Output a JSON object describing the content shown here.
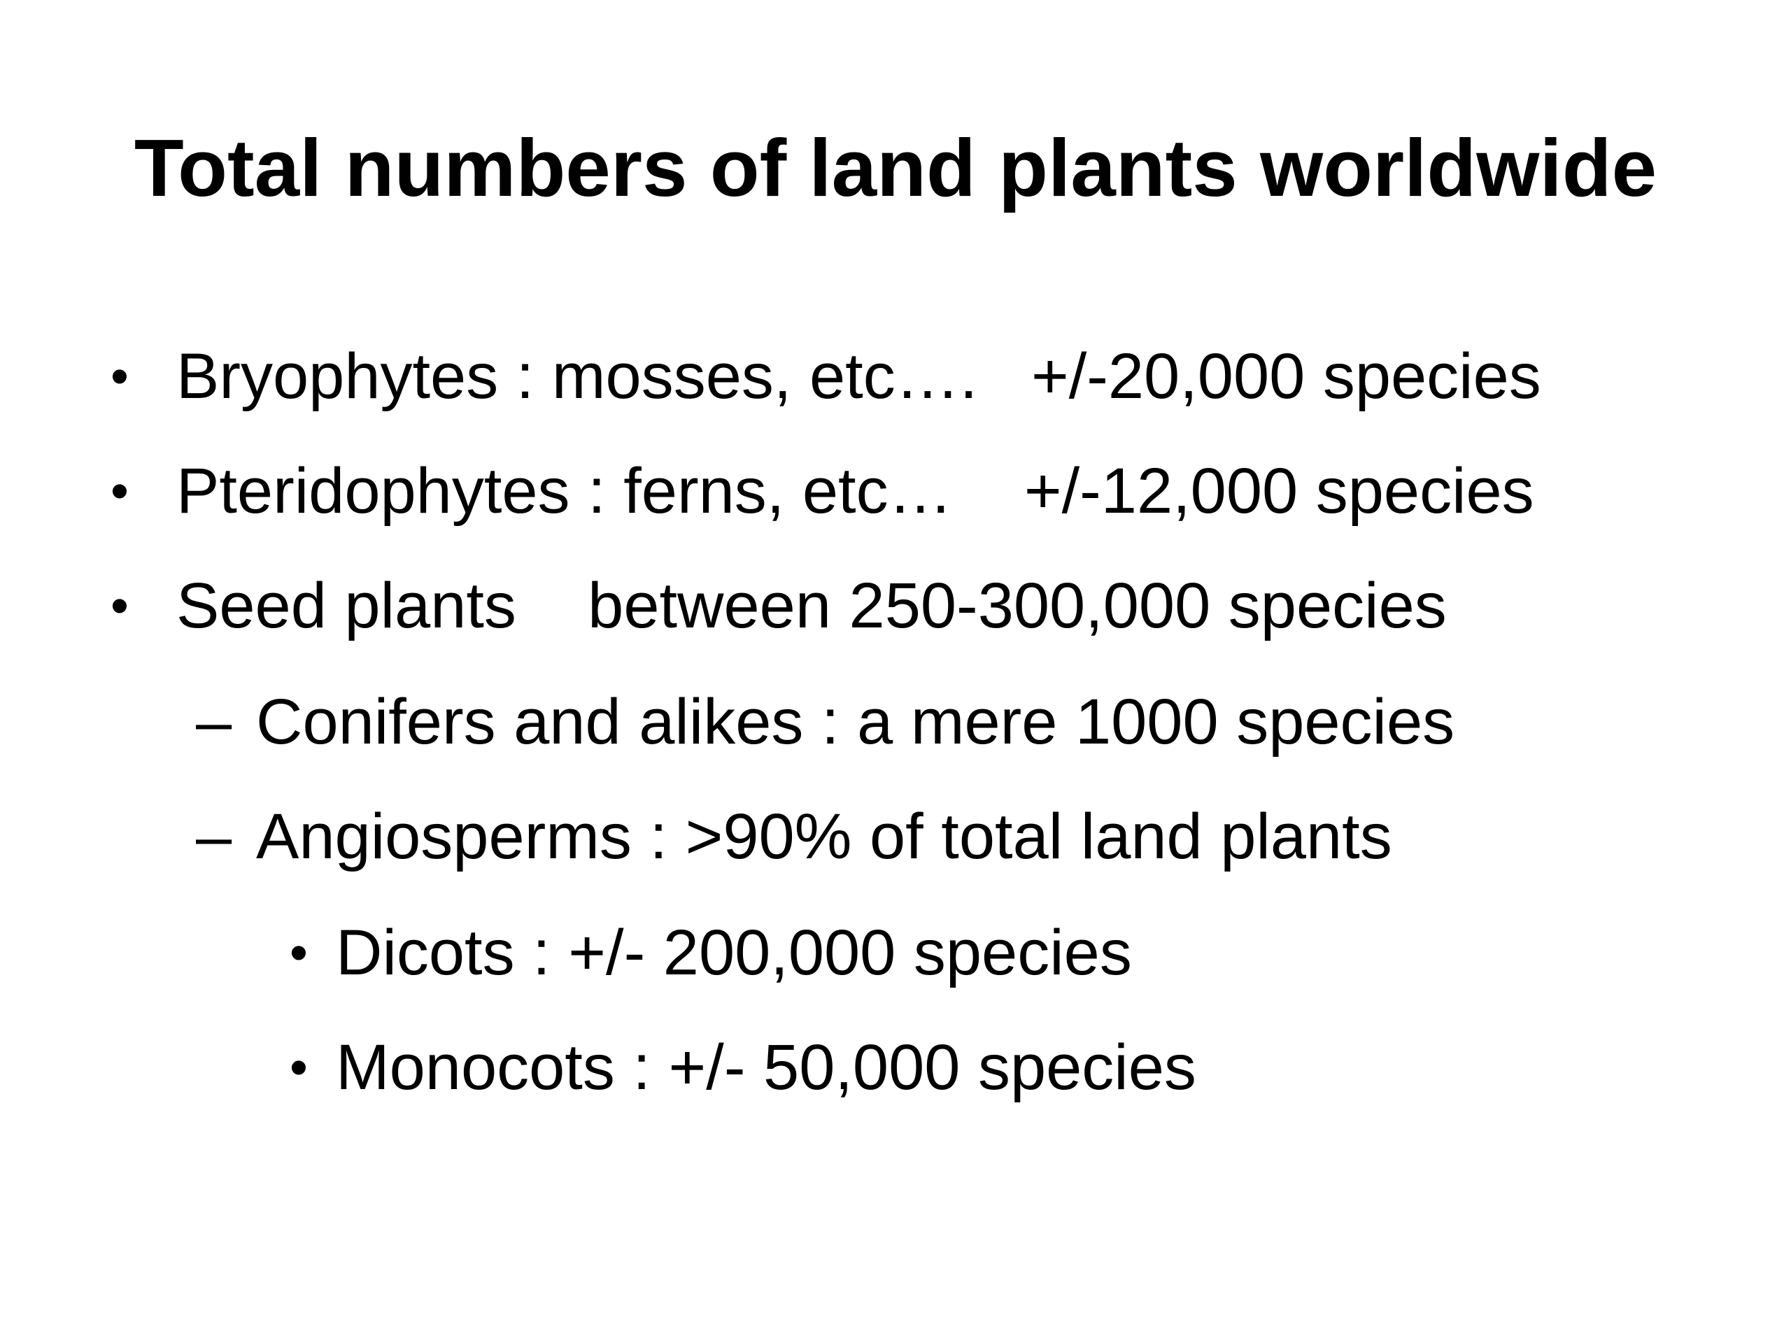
{
  "slide": {
    "title": "Total numbers of land plants worldwide",
    "items": [
      {
        "level": 1,
        "marker": "•",
        "text": "Bryophytes : mosses, etc….   +/-20,000 species"
      },
      {
        "level": 1,
        "marker": "•",
        "text": "Pteridophytes : ferns, etc…    +/-12,000 species"
      },
      {
        "level": 1,
        "marker": "•",
        "text": "Seed plants    between 250-300,000 species"
      },
      {
        "level": 2,
        "marker": "–",
        "text": "Conifers and alikes : a mere 1000 species"
      },
      {
        "level": 2,
        "marker": "–",
        "text": "Angiosperms : >90% of total land plants"
      },
      {
        "level": 3,
        "marker": "•",
        "text": "Dicots : +/- 200,000 species"
      },
      {
        "level": 3,
        "marker": "•",
        "text": "Monocots : +/- 50,000 species"
      }
    ]
  }
}
